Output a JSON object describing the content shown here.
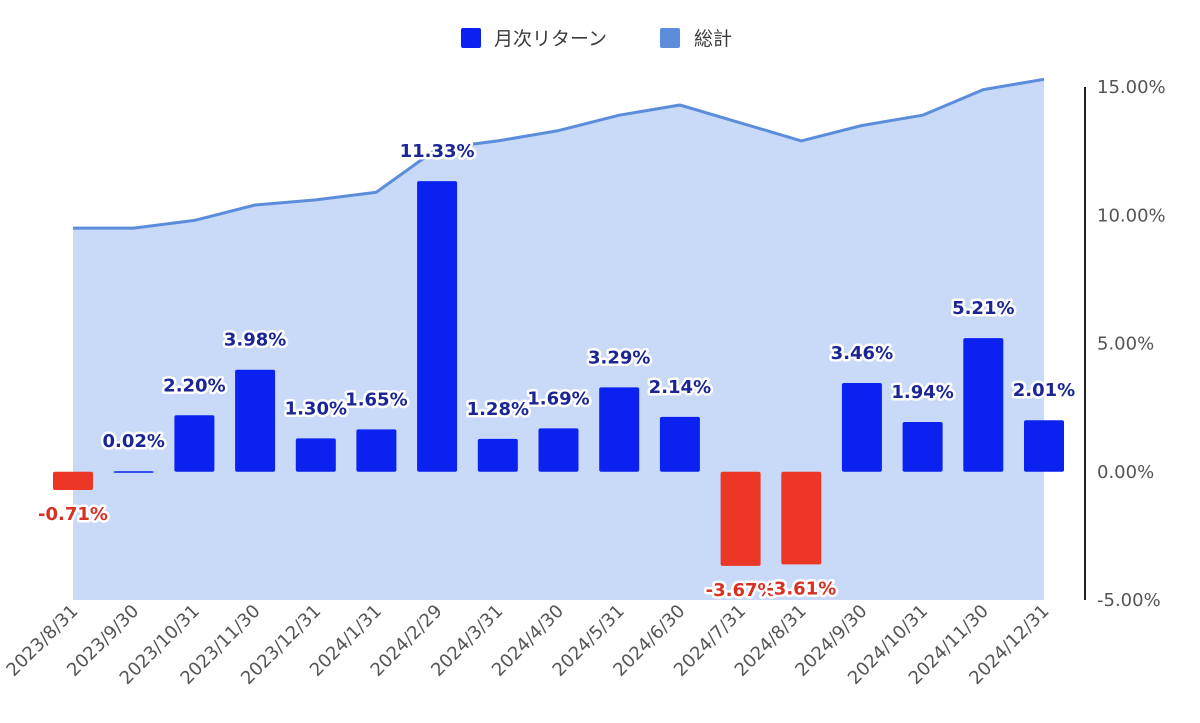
{
  "chart_data": {
    "type": "bar",
    "categories": [
      "2023/8/31",
      "2023/9/30",
      "2023/10/31",
      "2023/11/30",
      "2023/12/31",
      "2024/1/31",
      "2024/2/29",
      "2024/3/31",
      "2024/4/30",
      "2024/5/31",
      "2024/6/30",
      "2024/7/31",
      "2024/8/31",
      "2024/9/30",
      "2024/10/31",
      "2024/11/30",
      "2024/12/31"
    ],
    "series": [
      {
        "name": "月次リターン",
        "type": "bar",
        "values": [
          -0.71,
          0.02,
          2.2,
          3.98,
          1.3,
          1.65,
          11.33,
          1.28,
          1.69,
          3.29,
          2.14,
          -3.67,
          -3.61,
          3.46,
          1.94,
          5.21,
          2.01
        ],
        "labels": [
          "-0.71%",
          "0.02%",
          "2.20%",
          "3.98%",
          "1.30%",
          "1.65%",
          "11.33%",
          "1.28%",
          "1.69%",
          "3.29%",
          "2.14%",
          "-3.67%",
          "-3.61%",
          "3.46%",
          "1.94%",
          "5.21%",
          "2.01%"
        ]
      },
      {
        "name": "総計",
        "type": "area",
        "values": [
          9.5,
          9.5,
          9.8,
          10.4,
          10.6,
          10.9,
          12.6,
          12.9,
          13.3,
          13.9,
          14.3,
          13.6,
          12.9,
          13.5,
          13.9,
          14.9,
          15.3
        ]
      }
    ],
    "ylim": [
      -5,
      15
    ],
    "yticks": [
      "15.00%",
      "10.00%",
      "5.00%",
      "0.00%",
      "-5.00%"
    ],
    "ytick_values": [
      15,
      10,
      5,
      0,
      -5
    ],
    "legend_position": "top-center",
    "grid": false,
    "colors": {
      "bar_positive": "#0a21f0",
      "bar_negative": "#ec3626",
      "label_positive": "#1b2694",
      "label_negative": "#d83022",
      "area_fill": "#c9daf8",
      "area_line": "#5b8ddb",
      "axis": "#222222"
    }
  }
}
